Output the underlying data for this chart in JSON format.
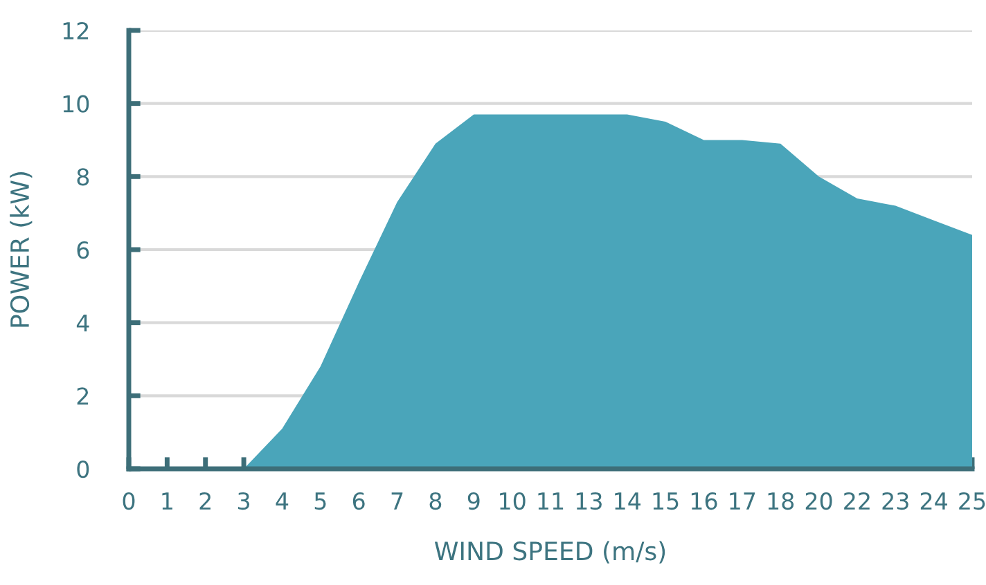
{
  "chart_data": {
    "type": "area",
    "xlabel": "WIND SPEED (m/s)",
    "ylabel": "POWER (kW)",
    "categories": [
      "0",
      "1",
      "2",
      "3",
      "4",
      "5",
      "6",
      "7",
      "8",
      "9",
      "10",
      "11",
      "13",
      "14",
      "15",
      "16",
      "17",
      "18",
      "20",
      "22",
      "23",
      "24",
      "25"
    ],
    "values": [
      0,
      0,
      0,
      0,
      1.1,
      2.8,
      5.1,
      7.3,
      8.9,
      9.7,
      9.7,
      9.7,
      9.7,
      9.7,
      9.5,
      9.0,
      9.0,
      8.9,
      8.0,
      7.4,
      7.2,
      6.8,
      6.4
    ],
    "color": "#4aa5ba",
    "ylim": [
      0,
      12
    ],
    "yticks": [
      0,
      2,
      4,
      6,
      8,
      10,
      12
    ],
    "grid": "y",
    "legend": false
  }
}
